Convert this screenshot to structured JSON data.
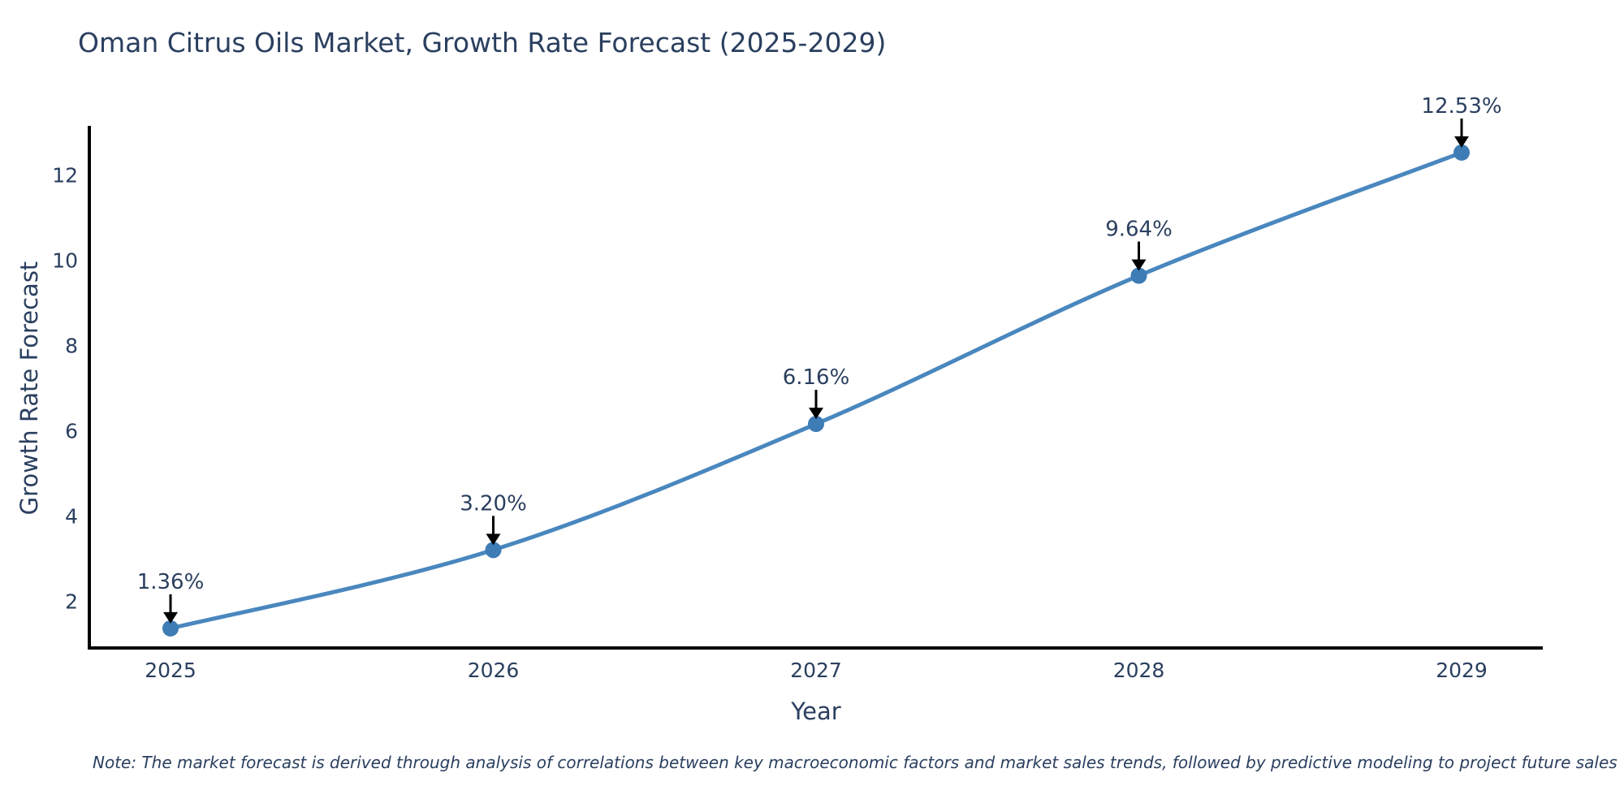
{
  "chart_data": {
    "type": "line",
    "title": "Oman Citrus Oils Market, Growth Rate Forecast (2025-2029)",
    "xlabel": "Year",
    "ylabel": "Growth Rate Forecast",
    "categories": [
      "2025",
      "2026",
      "2027",
      "2028",
      "2029"
    ],
    "series": [
      {
        "name": "Growth Rate Forecast",
        "values": [
          1.36,
          3.2,
          6.16,
          9.64,
          12.53
        ]
      }
    ],
    "point_labels": [
      "1.36%",
      "3.20%",
      "6.16%",
      "9.64%",
      "12.53%"
    ],
    "yticks": [
      2,
      4,
      6,
      8,
      10,
      12
    ],
    "ylim": [
      0.9,
      13.1
    ],
    "grid": false,
    "legend_position": "none",
    "line_shape": "spline",
    "colors": {
      "line": "#4987be",
      "marker": "#3d7cb5",
      "axis": "#000000",
      "text": "#2a3f5f",
      "annotation_arrow": "#000000",
      "background": "#ffffff"
    }
  },
  "note": {
    "text": "Note: The market forecast is derived through analysis of correlations between key macroeconomic factors and market sales trends, followed by predictive modeling to project future sales"
  }
}
